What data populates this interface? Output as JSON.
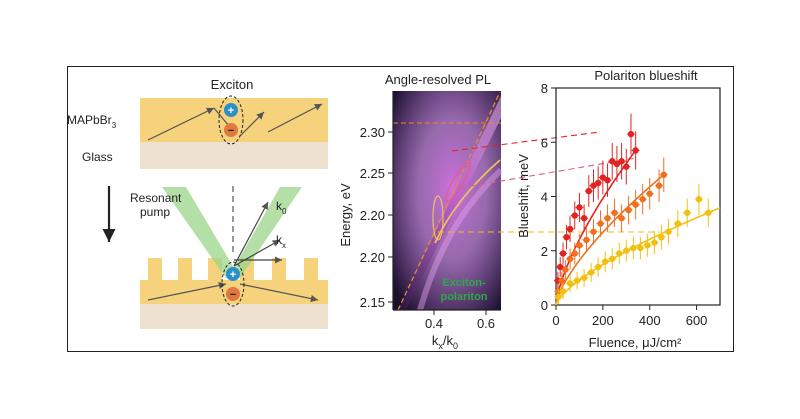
{
  "schematic": {
    "title": "Exciton",
    "layer_film": "MAPbBr",
    "layer_film_sub": "3",
    "layer_substrate": "Glass",
    "pump_line1": "Resonant",
    "pump_line2": "pump",
    "k0_main": "k",
    "k0_sub": "0",
    "kx_main": "k",
    "kx_sub": "x",
    "plus_sign": "+",
    "minus_sign": "−"
  },
  "pl_map": {
    "title": "Angle-resolved PL",
    "ylabel": "Energy, eV",
    "xlabel_main": "k",
    "xlabel_sub1": "x",
    "xlabel_mid": "/k",
    "xlabel_sub2": "0",
    "inset_line1": "Exciton-",
    "inset_line2": "polariton",
    "colors": {
      "bg": "#1a0f2e",
      "glow": "#d86ee0",
      "branch": "#f0c060",
      "dash": "#f08a2a",
      "label": "#2fa84a"
    }
  },
  "chart_data": {
    "type": "scatter",
    "title": "Polariton blueshift",
    "xlabel": "Fluence, μJ/cm²",
    "ylabel": "Blueshift, meV",
    "xlim": [
      0,
      700
    ],
    "ylim": [
      0,
      8
    ],
    "xticks": [
      "0",
      "200",
      "400",
      "600"
    ],
    "yticks": [
      "0",
      "2",
      "4",
      "6",
      "8"
    ],
    "series": [
      {
        "name": "red",
        "color": "#e32222",
        "fit_end": 340,
        "x": [
          8,
          18,
          30,
          45,
          60,
          80,
          100,
          120,
          140,
          160,
          180,
          200,
          220,
          240,
          260,
          280,
          300,
          320,
          340
        ],
        "y": [
          0.9,
          1.4,
          1.9,
          2.5,
          2.8,
          3.3,
          3.6,
          3.2,
          4.2,
          4.4,
          4.5,
          4.7,
          4.6,
          5.3,
          5.2,
          5.3,
          5.1,
          6.3,
          5.7
        ]
      },
      {
        "name": "orange",
        "color": "#f07020",
        "fit_end": 470,
        "x": [
          10,
          25,
          40,
          60,
          80,
          100,
          130,
          160,
          190,
          220,
          250,
          280,
          310,
          340,
          370,
          400,
          440,
          460
        ],
        "y": [
          0.5,
          0.9,
          1.3,
          1.7,
          1.9,
          2.2,
          2.4,
          2.7,
          3.0,
          3.2,
          3.4,
          3.2,
          3.5,
          3.7,
          3.9,
          4.1,
          4.4,
          4.8
        ]
      },
      {
        "name": "yellow",
        "color": "#f2c010",
        "fit_end": 700,
        "x": [
          10,
          30,
          60,
          90,
          120,
          150,
          180,
          210,
          240,
          270,
          300,
          330,
          360,
          390,
          420,
          450,
          480,
          520,
          560,
          610,
          650
        ],
        "y": [
          0.3,
          0.5,
          0.8,
          0.9,
          1.0,
          1.2,
          1.4,
          1.6,
          1.7,
          1.9,
          2.0,
          2.1,
          2.1,
          2.2,
          2.3,
          2.5,
          2.7,
          3.0,
          3.4,
          3.9,
          3.4
        ]
      }
    ]
  }
}
